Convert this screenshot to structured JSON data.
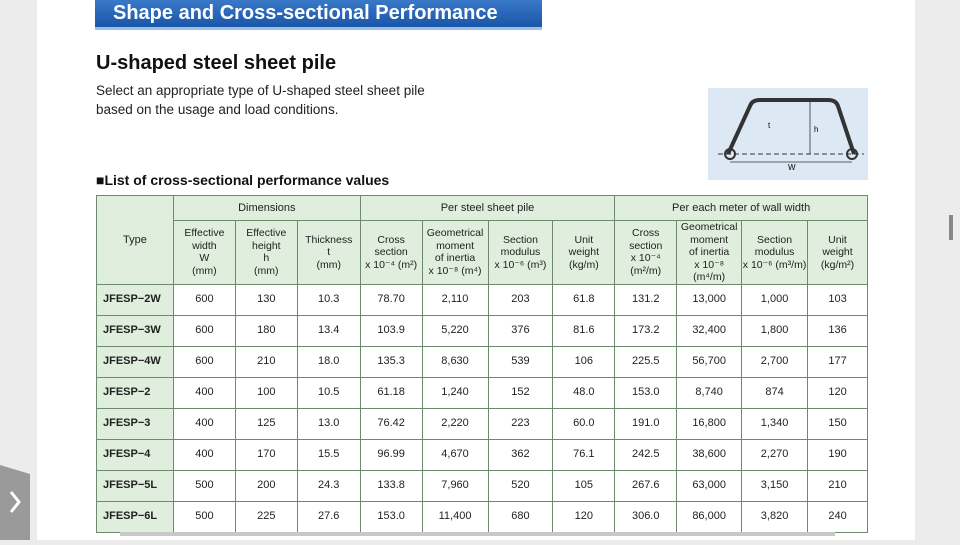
{
  "header": {
    "banner": "Shape and Cross-sectional Performance",
    "title": "U-shaped steel sheet pile",
    "description": [
      "Select an appropriate type of U-shaped steel sheet pile",
      "based on the usage and load conditions."
    ]
  },
  "figure": {
    "labels": [
      "t",
      "h",
      "W"
    ]
  },
  "table": {
    "caption": "■List of cross-sectional performance values",
    "groups": [
      "Dimensions",
      "Per steel sheet pile",
      "Per each meter of wall width"
    ],
    "columns": [
      [
        "Type"
      ],
      [
        "Effective",
        "width",
        "W",
        "(mm)"
      ],
      [
        "Effective",
        "height",
        "h",
        "(mm)"
      ],
      [
        "Thickness",
        "t",
        "(mm)"
      ],
      [
        "Cross",
        "section",
        "x 10⁻⁴ (m²)"
      ],
      [
        "Geometrical",
        "moment",
        "of inertia",
        "x 10⁻⁸ (m⁴)"
      ],
      [
        "Section",
        "modulus",
        "x 10⁻⁶ (m³)"
      ],
      [
        "Unit",
        "weight",
        "(kg/m)"
      ],
      [
        "Cross",
        "section",
        "x 10⁻⁴ (m²/m)"
      ],
      [
        "Geometrical",
        "moment",
        "of inertia",
        "x 10⁻⁸ (m⁴/m)"
      ],
      [
        "Section",
        "modulus",
        "x 10⁻⁶ (m³/m)"
      ],
      [
        "Unit",
        "weight",
        "(kg/m²)"
      ]
    ],
    "rows": [
      [
        "JFESP−2W",
        "600",
        "130",
        "10.3",
        "78.70",
        "2,110",
        "203",
        "61.8",
        "131.2",
        "13,000",
        "1,000",
        "103"
      ],
      [
        "JFESP−3W",
        "600",
        "180",
        "13.4",
        "103.9",
        "5,220",
        "376",
        "81.6",
        "173.2",
        "32,400",
        "1,800",
        "136"
      ],
      [
        "JFESP−4W",
        "600",
        "210",
        "18.0",
        "135.3",
        "8,630",
        "539",
        "106",
        "225.5",
        "56,700",
        "2,700",
        "177"
      ],
      [
        "JFESP−2",
        "400",
        "100",
        "10.5",
        "61.18",
        "1,240",
        "152",
        "48.0",
        "153.0",
        "8,740",
        "874",
        "120"
      ],
      [
        "JFESP−3",
        "400",
        "125",
        "13.0",
        "76.42",
        "2,220",
        "223",
        "60.0",
        "191.0",
        "16,800",
        "1,340",
        "150"
      ],
      [
        "JFESP−4",
        "400",
        "170",
        "15.5",
        "96.99",
        "4,670",
        "362",
        "76.1",
        "242.5",
        "38,600",
        "2,270",
        "190"
      ],
      [
        "JFESP−5L",
        "500",
        "200",
        "24.3",
        "133.8",
        "7,960",
        "520",
        "105",
        "267.6",
        "63,000",
        "3,150",
        "210"
      ],
      [
        "JFESP−6L",
        "500",
        "225",
        "27.6",
        "153.0",
        "11,400",
        "680",
        "120",
        "306.0",
        "86,000",
        "3,820",
        "240"
      ]
    ]
  }
}
